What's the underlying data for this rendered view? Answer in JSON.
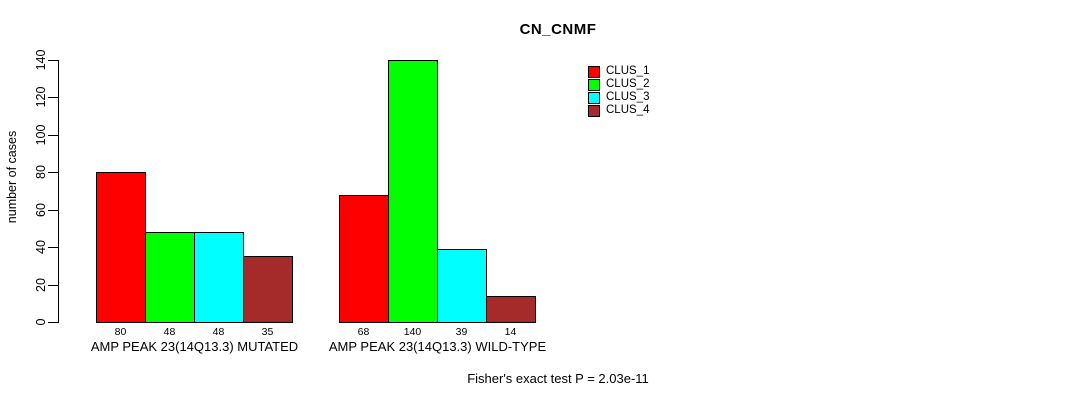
{
  "chart_data": {
    "type": "bar",
    "title": "CN_CNMF",
    "ylabel": "number of cases",
    "xlabel": "",
    "ylim": [
      0,
      140
    ],
    "yticks": [
      0,
      20,
      40,
      60,
      80,
      100,
      120,
      140
    ],
    "grid": false,
    "legend_position": "top-right",
    "background": "#FFFFFF",
    "axis_color": "#000000",
    "text_color": "#000000",
    "categories": [
      "AMP PEAK 23(14Q13.3) MUTATED",
      "AMP PEAK 23(14Q13.3) WILD-TYPE"
    ],
    "series": [
      {
        "name": "CLUS_1",
        "color": "#FF0000",
        "values": [
          80,
          68
        ]
      },
      {
        "name": "CLUS_2",
        "color": "#00FF00",
        "values": [
          48,
          140
        ]
      },
      {
        "name": "CLUS_3",
        "color": "#00FFFF",
        "values": [
          48,
          39
        ]
      },
      {
        "name": "CLUS_4",
        "color": "#A52A2A",
        "values": [
          35,
          14
        ]
      }
    ],
    "annotation": "Fisher's exact test P = 2.03e-11"
  }
}
